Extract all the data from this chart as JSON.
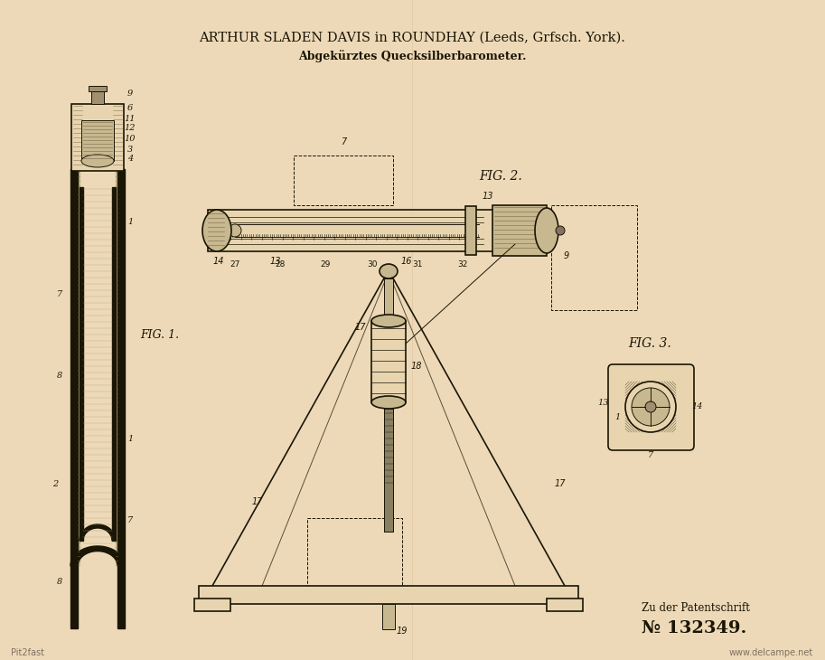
{
  "bg_color": "#EDD9B8",
  "title_line1": "ARTHUR SLADEN DAVIS in ROUNDHAY (Leeds, Grfsch. York).",
  "title_line2": "Abgekürztes Quecksilberbarometer.",
  "patent_label": "Zu der Patentschrift",
  "patent_number": "№ 132349.",
  "watermark_left": "Pit2fast",
  "watermark_right": "www.delcampe.net",
  "fig1_label": "FIG. 1.",
  "fig2_label": "FIG. 2.",
  "fig3_label": "FIG. 3.",
  "line_color": "#1a1505",
  "fill_light": "#e8d5b0",
  "fill_mid": "#c8b890",
  "fill_dark": "#8a7a5a",
  "hatch_color": "#5a4a30"
}
